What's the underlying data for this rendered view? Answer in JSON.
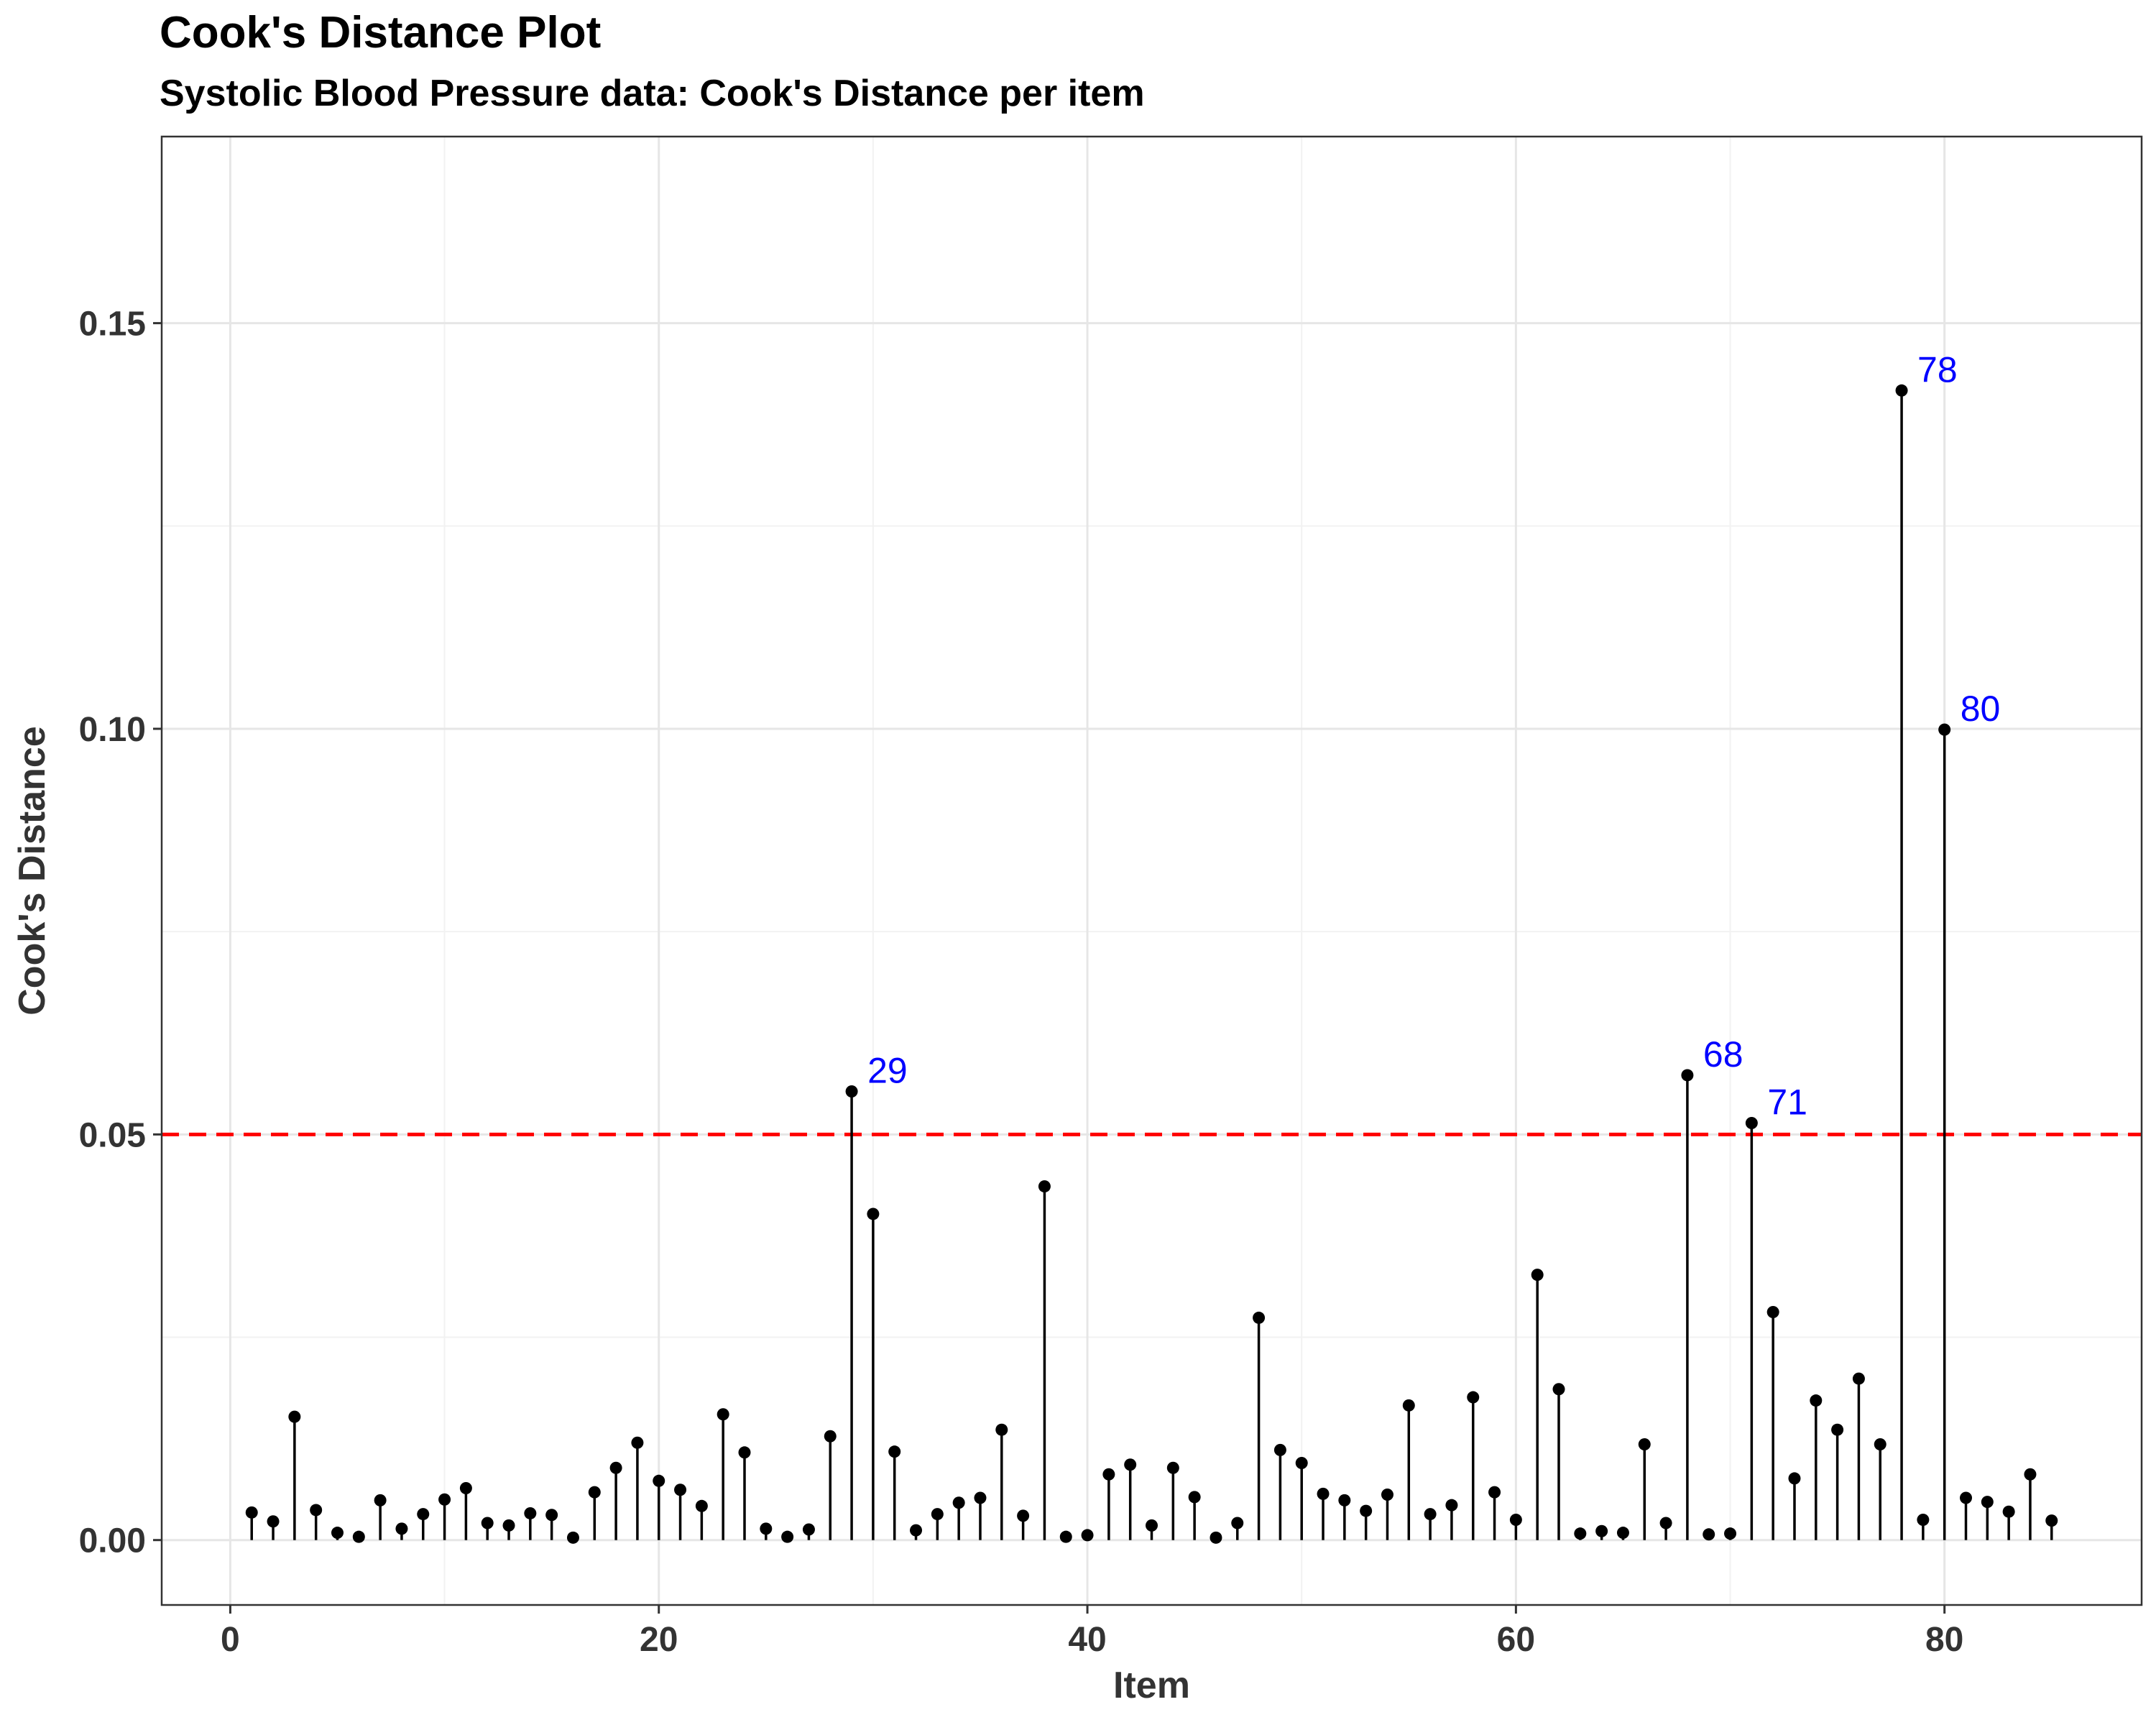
{
  "chart_data": {
    "type": "scatter",
    "title": "Cook's Distance Plot",
    "subtitle": "Systolic Blood Pressure data: Cook's Distance per item",
    "xlabel": "Item",
    "ylabel": "Cook's Distance",
    "xlim": [
      -3.2,
      89.2
    ],
    "ylim": [
      -0.008,
      0.173
    ],
    "x_ticks": [
      0,
      20,
      40,
      60,
      80
    ],
    "x_tick_labels": [
      "0",
      "20",
      "40",
      "60",
      "80"
    ],
    "y_ticks": [
      0.0,
      0.05,
      0.1,
      0.15
    ],
    "y_tick_labels": [
      "0.00",
      "0.05",
      "0.10",
      "0.15"
    ],
    "y_minor_gridlines": [
      0.025,
      0.075,
      0.125
    ],
    "x_minor_gridlines": [
      10,
      30,
      50,
      70
    ],
    "grid": true,
    "mark": "lollipop",
    "threshold": {
      "value": 0.05,
      "color": "#ff0000",
      "style": "dashed"
    },
    "label_color": "#0000ff",
    "point_color": "#000000",
    "labeled_items": [
      "29",
      "68",
      "71",
      "78",
      "80"
    ],
    "x": [
      1,
      2,
      3,
      4,
      5,
      6,
      7,
      8,
      9,
      10,
      11,
      12,
      13,
      14,
      15,
      16,
      17,
      18,
      19,
      20,
      21,
      22,
      23,
      24,
      25,
      26,
      27,
      28,
      29,
      30,
      31,
      32,
      33,
      34,
      35,
      36,
      37,
      38,
      39,
      40,
      41,
      42,
      43,
      44,
      45,
      46,
      47,
      48,
      49,
      50,
      51,
      52,
      53,
      54,
      55,
      56,
      57,
      58,
      59,
      60,
      61,
      62,
      63,
      64,
      65,
      66,
      67,
      68,
      69,
      70,
      71,
      72,
      73,
      74,
      75,
      76,
      77,
      78,
      79,
      80,
      81,
      82,
      83,
      84,
      85
    ],
    "y": [
      0.0034,
      0.0023,
      0.0152,
      0.0037,
      0.0009,
      0.0004,
      0.0049,
      0.0014,
      0.0032,
      0.005,
      0.0064,
      0.0021,
      0.0018,
      0.0033,
      0.0031,
      0.0003,
      0.0059,
      0.0089,
      0.012,
      0.0073,
      0.0062,
      0.0042,
      0.0155,
      0.0108,
      0.0014,
      0.0004,
      0.0013,
      0.0128,
      0.0553,
      0.0402,
      0.0109,
      0.0012,
      0.0032,
      0.0046,
      0.0052,
      0.0136,
      0.003,
      0.0436,
      0.0004,
      0.0006,
      0.0081,
      0.0093,
      0.0018,
      0.0089,
      0.0053,
      0.0003,
      0.0021,
      0.0274,
      0.0111,
      0.0095,
      0.0057,
      0.0049,
      0.0036,
      0.0056,
      0.0166,
      0.0032,
      0.0043,
      0.0176,
      0.0059,
      0.0025,
      0.0327,
      0.0186,
      0.0008,
      0.0011,
      0.0009,
      0.0118,
      0.0021,
      0.0573,
      0.0007,
      0.0008,
      0.0514,
      0.0281,
      0.0076,
      0.0172,
      0.0136,
      0.0199,
      0.0118,
      0.1417,
      0.0025,
      0.0999,
      0.0052,
      0.0047,
      0.0035,
      0.0081,
      0.0024
    ]
  }
}
